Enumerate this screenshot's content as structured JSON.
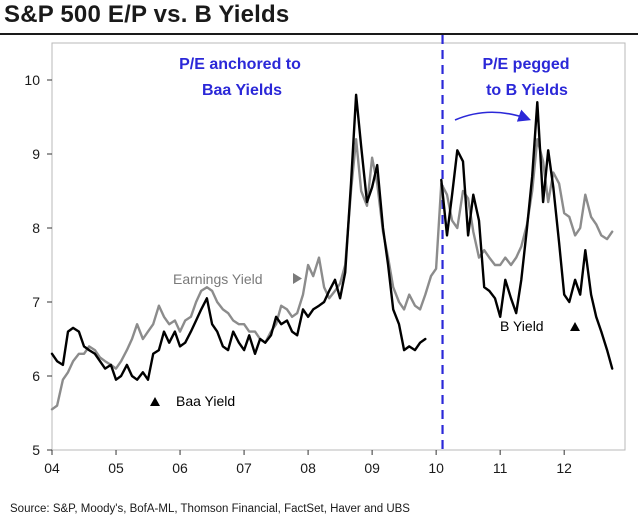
{
  "title": "S&P 500 E/P vs. B Yields",
  "source": "Source: S&P, Moody's, BofA-ML, Thomson Financial, FactSet, Haver and UBS",
  "colors": {
    "earnings": "#8c8c8c",
    "b_yield": "#000000",
    "divider": "#2b28d8",
    "annotation": "#2b28d8"
  },
  "chart_data": {
    "type": "line",
    "title": "S&P 500 E/P vs. B Yields",
    "xlabel": "",
    "ylabel": "",
    "x_range": [
      2004.0,
      2012.95
    ],
    "ylim": [
      5,
      10.5
    ],
    "x_ticks": [
      {
        "value": 2004,
        "label": "04"
      },
      {
        "value": 2005,
        "label": "05"
      },
      {
        "value": 2006,
        "label": "06"
      },
      {
        "value": 2007,
        "label": "07"
      },
      {
        "value": 2008,
        "label": "08"
      },
      {
        "value": 2009,
        "label": "09"
      },
      {
        "value": 2010,
        "label": "10"
      },
      {
        "value": 2011,
        "label": "11"
      },
      {
        "value": 2012,
        "label": "12"
      }
    ],
    "y_ticks": [
      {
        "value": 5,
        "label": "5"
      },
      {
        "value": 6,
        "label": "6"
      },
      {
        "value": 7,
        "label": "7"
      },
      {
        "value": 8,
        "label": "8"
      },
      {
        "value": 9,
        "label": "9"
      },
      {
        "value": 10,
        "label": "10"
      }
    ],
    "divider_x": 2010.1,
    "annotations": {
      "left_text": [
        "P/E anchored to",
        "Baa Yields"
      ],
      "right_text": [
        "P/E  pegged",
        "to B Yields"
      ],
      "earnings_label": "Earnings Yield",
      "baa_label": "Baa Yield",
      "b_label": "B Yield"
    },
    "series": [
      {
        "name": "Earnings Yield",
        "x": [
          2004.0,
          2004.08,
          2004.17,
          2004.25,
          2004.33,
          2004.42,
          2004.5,
          2004.58,
          2004.67,
          2004.75,
          2004.83,
          2004.92,
          2005.0,
          2005.08,
          2005.17,
          2005.25,
          2005.33,
          2005.42,
          2005.5,
          2005.58,
          2005.67,
          2005.75,
          2005.83,
          2005.92,
          2006.0,
          2006.08,
          2006.17,
          2006.25,
          2006.33,
          2006.42,
          2006.5,
          2006.58,
          2006.67,
          2006.75,
          2006.83,
          2006.92,
          2007.0,
          2007.08,
          2007.17,
          2007.25,
          2007.33,
          2007.42,
          2007.5,
          2007.58,
          2007.67,
          2007.75,
          2007.83,
          2007.92,
          2008.0,
          2008.08,
          2008.17,
          2008.25,
          2008.33,
          2008.42,
          2008.5,
          2008.58,
          2008.67,
          2008.75,
          2008.83,
          2008.92,
          2009.0,
          2009.08,
          2009.17,
          2009.25,
          2009.33,
          2009.42,
          2009.5,
          2009.58,
          2009.67,
          2009.75,
          2009.83,
          2009.92,
          2010.0,
          2010.08,
          2010.17,
          2010.25,
          2010.33,
          2010.42,
          2010.5,
          2010.58,
          2010.67,
          2010.75,
          2010.83,
          2010.92,
          2011.0,
          2011.08,
          2011.17,
          2011.25,
          2011.33,
          2011.42,
          2011.5,
          2011.58,
          2011.67,
          2011.75,
          2011.83,
          2011.92,
          2012.0,
          2012.08,
          2012.17,
          2012.25,
          2012.33,
          2012.42,
          2012.5,
          2012.58,
          2012.67,
          2012.75
        ],
        "values": [
          5.55,
          5.6,
          5.95,
          6.05,
          6.2,
          6.3,
          6.3,
          6.4,
          6.35,
          6.25,
          6.2,
          6.15,
          6.1,
          6.2,
          6.35,
          6.5,
          6.7,
          6.5,
          6.6,
          6.7,
          6.95,
          6.8,
          6.7,
          6.75,
          6.6,
          6.75,
          6.8,
          7.0,
          7.15,
          7.2,
          7.15,
          7.0,
          6.9,
          6.85,
          6.75,
          6.7,
          6.7,
          6.6,
          6.6,
          6.5,
          6.45,
          6.6,
          6.7,
          6.95,
          6.9,
          6.8,
          6.85,
          7.1,
          7.5,
          7.35,
          7.6,
          7.2,
          7.05,
          7.15,
          7.25,
          7.5,
          8.5,
          9.2,
          8.5,
          8.3,
          8.95,
          8.6,
          7.95,
          7.6,
          7.2,
          7.0,
          6.9,
          7.1,
          6.95,
          6.9,
          7.1,
          7.35,
          7.45,
          8.6,
          8.45,
          8.1,
          8.0,
          8.5,
          8.4,
          7.95,
          7.6,
          7.7,
          7.6,
          7.5,
          7.5,
          7.6,
          7.5,
          7.6,
          7.75,
          8.05,
          8.5,
          9.2,
          8.9,
          8.35,
          8.75,
          8.6,
          8.2,
          8.15,
          7.9,
          8.0,
          8.45,
          8.15,
          8.05,
          7.9,
          7.85,
          7.95
        ]
      },
      {
        "name": "B Yield",
        "x": [
          2004.0,
          2004.08,
          2004.17,
          2004.25,
          2004.33,
          2004.42,
          2004.5,
          2004.58,
          2004.67,
          2004.75,
          2004.83,
          2004.92,
          2005.0,
          2005.08,
          2005.17,
          2005.25,
          2005.33,
          2005.42,
          2005.5,
          2005.58,
          2005.67,
          2005.75,
          2005.83,
          2005.92,
          2006.0,
          2006.08,
          2006.17,
          2006.25,
          2006.33,
          2006.42,
          2006.5,
          2006.58,
          2006.67,
          2006.75,
          2006.83,
          2006.92,
          2007.0,
          2007.08,
          2007.17,
          2007.25,
          2007.33,
          2007.42,
          2007.5,
          2007.58,
          2007.67,
          2007.75,
          2007.83,
          2007.92,
          2008.0,
          2008.08,
          2008.17,
          2008.25,
          2008.33,
          2008.42,
          2008.5,
          2008.58,
          2008.67,
          2008.75,
          2008.83,
          2008.92,
          2009.0,
          2009.08,
          2009.17,
          2009.25,
          2009.33,
          2009.42,
          2009.5,
          2009.58,
          2009.67,
          2009.75,
          2009.83,
          2009.92,
          2010.0,
          2010.08,
          2010.17,
          2010.25,
          2010.33,
          2010.42,
          2010.5,
          2010.58,
          2010.67,
          2010.75,
          2010.83,
          2010.92,
          2011.0,
          2011.08,
          2011.17,
          2011.25,
          2011.33,
          2011.42,
          2011.5,
          2011.58,
          2011.67,
          2011.75,
          2011.83,
          2011.92,
          2012.0,
          2012.08,
          2012.17,
          2012.25,
          2012.33,
          2012.42,
          2012.5,
          2012.58,
          2012.67,
          2012.75
        ],
        "values": [
          6.3,
          6.2,
          6.15,
          6.6,
          6.65,
          6.6,
          6.4,
          6.35,
          6.3,
          6.2,
          6.1,
          6.15,
          5.95,
          6.0,
          6.15,
          6.0,
          5.95,
          6.05,
          5.95,
          6.3,
          6.35,
          6.6,
          6.45,
          6.6,
          6.4,
          6.45,
          6.6,
          6.75,
          6.9,
          7.05,
          6.7,
          6.6,
          6.4,
          6.35,
          6.6,
          6.45,
          6.35,
          6.55,
          6.3,
          6.5,
          6.45,
          6.55,
          6.8,
          6.7,
          6.75,
          6.6,
          6.55,
          6.9,
          6.8,
          6.9,
          6.95,
          7.0,
          7.15,
          7.3,
          7.05,
          7.4,
          8.6,
          9.8,
          9.1,
          8.35,
          8.55,
          8.85,
          8.0,
          7.5,
          6.9,
          6.7,
          6.35,
          6.4,
          6.35,
          6.45,
          6.5,
          null,
          null,
          8.65,
          7.9,
          8.45,
          9.05,
          8.9,
          7.9,
          8.45,
          8.1,
          7.2,
          7.15,
          7.05,
          6.8,
          7.3,
          7.05,
          6.85,
          7.3,
          8.0,
          8.7,
          9.7,
          8.35,
          9.05,
          8.55,
          7.8,
          7.1,
          7.0,
          7.3,
          7.1,
          7.7,
          7.1,
          6.8,
          6.6,
          6.35,
          6.1
        ]
      },
      {
        "name": "Baa Yield",
        "x": [],
        "values": []
      }
    ]
  }
}
